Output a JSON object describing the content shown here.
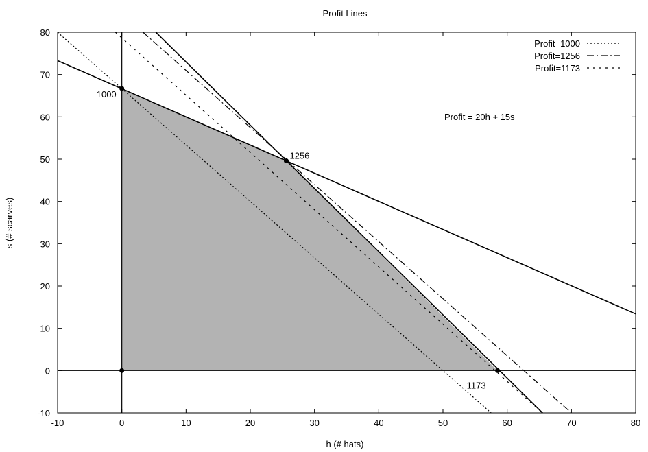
{
  "chart_data": {
    "type": "line",
    "title": "Profit Lines",
    "xlabel": "h (# hats)",
    "ylabel": "s (# scarves)",
    "xlim": [
      -10,
      80
    ],
    "ylim": [
      -10,
      80
    ],
    "x_ticks": [
      -10,
      0,
      10,
      20,
      30,
      40,
      50,
      60,
      70,
      80
    ],
    "y_ticks": [
      -10,
      0,
      10,
      20,
      30,
      40,
      50,
      60,
      70,
      80
    ],
    "x_tick_labels": [
      "-10",
      "0",
      "10",
      "20",
      "30",
      "40",
      "50",
      "60",
      "70",
      "80"
    ],
    "y_tick_labels": [
      "-10",
      "0",
      "10",
      "20",
      "30",
      "40",
      "50",
      "60",
      "70",
      "80"
    ],
    "grid": false,
    "legend_position": "top-right",
    "annotation": "Profit = 20h + 15s",
    "feasible_region": {
      "fill": "#b3b3b3",
      "vertices": [
        [
          0,
          0
        ],
        [
          0,
          66.7
        ],
        [
          25.6,
          49.6
        ],
        [
          58.5,
          0
        ]
      ]
    },
    "constraint_lines": [
      {
        "points": [
          [
            -10,
            73.3
          ],
          [
            80,
            13.4
          ]
        ]
      },
      {
        "points": [
          [
            5.3,
            80
          ],
          [
            65.5,
            -10
          ]
        ]
      },
      {
        "points": [
          [
            -10,
            0
          ],
          [
            80,
            0
          ]
        ]
      },
      {
        "points": [
          [
            0,
            -10
          ],
          [
            0,
            80
          ]
        ]
      }
    ],
    "series": [
      {
        "name": "Profit=1000",
        "dash": "dotted",
        "points": [
          [
            -10,
            80
          ],
          [
            57.5,
            -10
          ]
        ]
      },
      {
        "name": "Profit=1256",
        "dash": "dashdot",
        "points": [
          [
            3.3,
            80
          ],
          [
            70,
            -10
          ]
        ]
      },
      {
        "name": "Profit=1173",
        "dash": "dashed-dotted-short",
        "points": [
          [
            -1,
            80
          ],
          [
            65.5,
            -10
          ]
        ]
      }
    ],
    "key_points": [
      {
        "x": 0,
        "y": 0,
        "label": ""
      },
      {
        "x": 0,
        "y": 66.7,
        "label": "1000"
      },
      {
        "x": 25.6,
        "y": 49.6,
        "label": "1256"
      },
      {
        "x": 58.5,
        "y": 0,
        "label": "1173"
      }
    ],
    "colors": {
      "line": "#000000",
      "fill": "#b3b3b3",
      "background": "#ffffff"
    }
  }
}
